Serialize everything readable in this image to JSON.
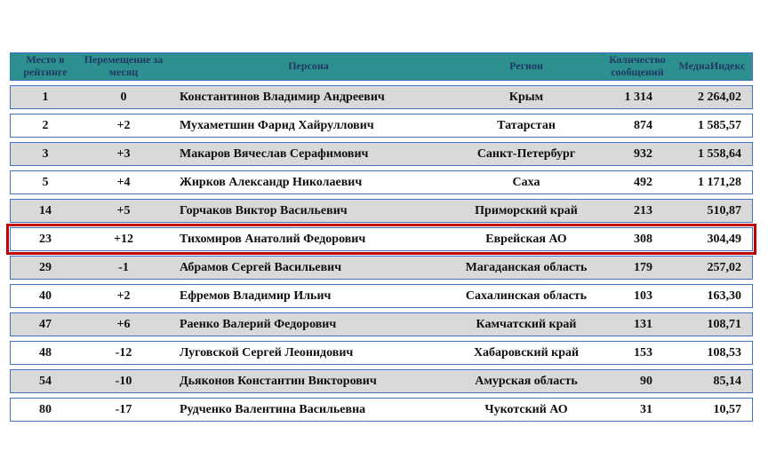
{
  "colors": {
    "header_bg": "#2e8f8f",
    "header_text": "#1f3864",
    "body_text": "#101010",
    "border": "#4472c4",
    "shaded_row": "#d9d9d9",
    "highlight_border": "#c00000"
  },
  "table": {
    "columns": [
      {
        "label": "Место в рейтинге"
      },
      {
        "label": "Перемещение за месяц"
      },
      {
        "label": "Персона"
      },
      {
        "label": "Регион"
      },
      {
        "label": "Количество сообщений"
      },
      {
        "label": "МедиаИндекс"
      }
    ],
    "rows": [
      {
        "rank": "1",
        "change": "0",
        "person": "Константинов Владимир Андреевич",
        "region": "Крым",
        "messages": "1 314",
        "media_index": "2 264,02",
        "highlighted": false
      },
      {
        "rank": "2",
        "change": "+2",
        "person": "Мухаметшин Фарид Хайруллович",
        "region": "Татарстан",
        "messages": "874",
        "media_index": "1 585,57",
        "highlighted": false
      },
      {
        "rank": "3",
        "change": "+3",
        "person": "Макаров Вячеслав Серафимович",
        "region": "Санкт-Петербург",
        "messages": "932",
        "media_index": "1 558,64",
        "highlighted": false
      },
      {
        "rank": "5",
        "change": "+4",
        "person": "Жирков Александр Николаевич",
        "region": "Саха",
        "messages": "492",
        "media_index": "1 171,28",
        "highlighted": false
      },
      {
        "rank": "14",
        "change": "+5",
        "person": "Горчаков Виктор Васильевич",
        "region": "Приморский край",
        "messages": "213",
        "media_index": "510,87",
        "highlighted": false
      },
      {
        "rank": "23",
        "change": "+12",
        "person": "Тихомиров Анатолий Федорович",
        "region": "Еврейская АО",
        "messages": "308",
        "media_index": "304,49",
        "highlighted": true
      },
      {
        "rank": "29",
        "change": "-1",
        "person": "Абрамов Сергей Васильевич",
        "region": "Магаданская область",
        "messages": "179",
        "media_index": "257,02",
        "highlighted": false
      },
      {
        "rank": "40",
        "change": "+2",
        "person": "Ефремов Владимир Ильич",
        "region": "Сахалинская область",
        "messages": "103",
        "media_index": "163,30",
        "highlighted": false
      },
      {
        "rank": "47",
        "change": "+6",
        "person": "Раенко Валерий Федорович",
        "region": "Камчатский край",
        "messages": "131",
        "media_index": "108,71",
        "highlighted": false
      },
      {
        "rank": "48",
        "change": "-12",
        "person": "Луговской Сергей Леонидович",
        "region": "Хабаровский край",
        "messages": "153",
        "media_index": "108,53",
        "highlighted": false
      },
      {
        "rank": "54",
        "change": "-10",
        "person": "Дьяконов Константин Викторович",
        "region": "Амурская область",
        "messages": "90",
        "media_index": "85,14",
        "highlighted": false
      },
      {
        "rank": "80",
        "change": "-17",
        "person": "Рудченко Валентина Васильевна",
        "region": "Чукотский АО",
        "messages": "31",
        "media_index": "10,57",
        "highlighted": false
      }
    ]
  },
  "chart_data": {
    "type": "table",
    "columns": [
      "Место в рейтинге",
      "Перемещение за месяц",
      "Персона",
      "Регион",
      "Количество сообщений",
      "МедиаИндекс"
    ],
    "rows": [
      [
        "1",
        "0",
        "Константинов Владимир Андреевич",
        "Крым",
        "1 314",
        "2 264,02"
      ],
      [
        "2",
        "+2",
        "Мухаметшин Фарид Хайруллович",
        "Татарстан",
        "874",
        "1 585,57"
      ],
      [
        "3",
        "+3",
        "Макаров Вячеслав Серафимович",
        "Санкт-Петербург",
        "932",
        "1 558,64"
      ],
      [
        "5",
        "+4",
        "Жирков Александр Николаевич",
        "Саха",
        "492",
        "1 171,28"
      ],
      [
        "14",
        "+5",
        "Горчаков Виктор Васильевич",
        "Приморский край",
        "213",
        "510,87"
      ],
      [
        "23",
        "+12",
        "Тихомиров Анатолий Федорович",
        "Еврейская АО",
        "308",
        "304,49"
      ],
      [
        "29",
        "-1",
        "Абрамов Сергей Васильевич",
        "Магаданская область",
        "179",
        "257,02"
      ],
      [
        "40",
        "+2",
        "Ефремов Владимир Ильич",
        "Сахалинская область",
        "103",
        "163,30"
      ],
      [
        "47",
        "+6",
        "Раенко Валерий Федорович",
        "Камчатский край",
        "131",
        "108,71"
      ],
      [
        "48",
        "-12",
        "Луговской Сергей Леонидович",
        "Хабаровский край",
        "153",
        "108,53"
      ],
      [
        "54",
        "-10",
        "Дьяконов Константин Викторович",
        "Амурская область",
        "90",
        "85,14"
      ],
      [
        "80",
        "-17",
        "Рудченко Валентина Васильевна",
        "Чукотский АО",
        "31",
        "10,57"
      ]
    ],
    "highlighted_row_index": 5
  }
}
